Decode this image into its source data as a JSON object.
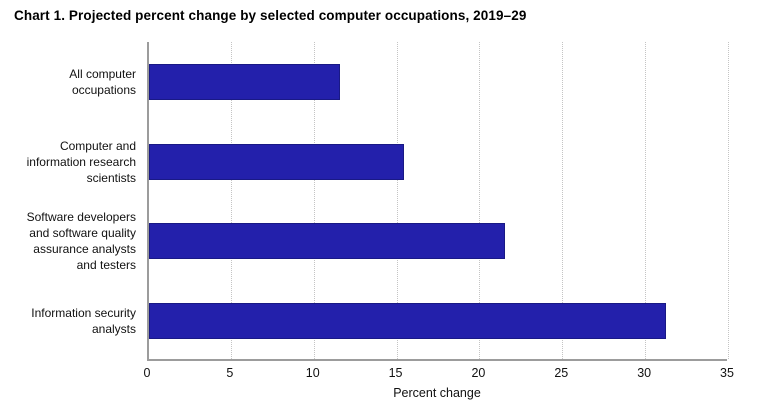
{
  "page": {
    "background_color": "#ffffff"
  },
  "chart_data": {
    "type": "bar",
    "orientation": "horizontal",
    "title": "Chart 1. Projected percent change by selected computer occupations, 2019–29",
    "categories": [
      "All computer occupations",
      "Computer and information research scientists",
      "Software developers and software quality assurance analysts and testers",
      "Information security analysts"
    ],
    "categories_wrapped": [
      [
        "All computer",
        "occupations"
      ],
      [
        "Computer and",
        "information research",
        "scientists"
      ],
      [
        "Software developers",
        "and software quality",
        "assurance analysts",
        "and testers"
      ],
      [
        "Information security",
        "analysts"
      ]
    ],
    "values": [
      11.5,
      15.4,
      21.5,
      31.2
    ],
    "xlabel": "Percent change",
    "ylabel": "",
    "xlim": [
      0,
      35
    ],
    "xticks": [
      0,
      5,
      10,
      15,
      20,
      25,
      30,
      35
    ],
    "grid": "vertical dotted gridlines at each x tick",
    "legend_position": "none",
    "colors": {
      "bar_fill": "#2320AB",
      "bar_border": "#191985",
      "axis_line": "#9c9c9c",
      "gridline": "#c4c4c4",
      "text": "#111111",
      "title_text": "#000000"
    }
  }
}
